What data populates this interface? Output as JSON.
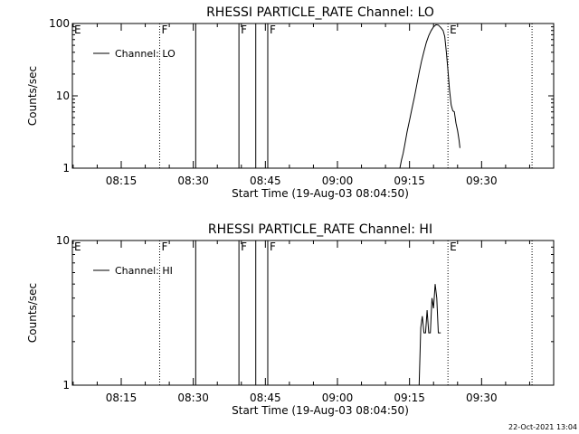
{
  "footer_timestamp": "22-Oct-2021 13:04",
  "chart_data": [
    {
      "type": "line",
      "title": "RHESSI PARTICLE_RATE Channel: LO",
      "xlabel": "Start Time (19-Aug-03 08:04:50)",
      "ylabel": "Counts/sec",
      "y_scale": "log",
      "ylim": [
        1,
        100
      ],
      "y_ticks": [
        {
          "v": 1,
          "label": "1"
        },
        {
          "v": 10,
          "label": "10"
        },
        {
          "v": 100,
          "label": "100"
        }
      ],
      "xlim": [
        "08:04:50",
        "09:45:00"
      ],
      "x_ticks": [
        "08:15",
        "08:30",
        "08:45",
        "09:00",
        "09:15",
        "09:30"
      ],
      "legend": {
        "position": "top-left",
        "entries": [
          "Channel: LO"
        ]
      },
      "markers": [
        {
          "label": "E",
          "t": "08:04:50",
          "style": "none"
        },
        {
          "label": "F",
          "t": "08:23:00",
          "style": "dotted"
        },
        {
          "label": "",
          "t": "08:30:30",
          "style": "solid"
        },
        {
          "label": "F",
          "t": "08:39:30",
          "style": "solid"
        },
        {
          "label": "",
          "t": "08:43:00",
          "style": "solid"
        },
        {
          "label": "F",
          "t": "08:45:30",
          "style": "solid"
        },
        {
          "label": "E",
          "t": "09:23:00",
          "style": "dotted"
        },
        {
          "label": "",
          "t": "09:40:30",
          "style": "dotted"
        }
      ],
      "series": [
        {
          "name": "Channel: LO",
          "points": [
            [
              "09:13:00",
              1.0
            ],
            [
              "09:13:20",
              1.3
            ],
            [
              "09:13:40",
              1.6
            ],
            [
              "09:14:00",
              2.1
            ],
            [
              "09:14:30",
              3.2
            ],
            [
              "09:15:00",
              4.6
            ],
            [
              "09:15:30",
              6.6
            ],
            [
              "09:16:00",
              9.5
            ],
            [
              "09:16:30",
              14
            ],
            [
              "09:17:00",
              21
            ],
            [
              "09:17:30",
              30
            ],
            [
              "09:18:00",
              41
            ],
            [
              "09:18:30",
              55
            ],
            [
              "09:19:00",
              68
            ],
            [
              "09:19:30",
              80
            ],
            [
              "09:20:00",
              90
            ],
            [
              "09:20:30",
              96
            ],
            [
              "09:21:00",
              95
            ],
            [
              "09:21:30",
              88
            ],
            [
              "09:22:00",
              80
            ],
            [
              "09:22:20",
              66
            ],
            [
              "09:22:40",
              40
            ],
            [
              "09:23:00",
              22
            ],
            [
              "09:23:20",
              12
            ],
            [
              "09:23:40",
              7.5
            ],
            [
              "09:24:00",
              6.2
            ],
            [
              "09:24:20",
              6.0
            ],
            [
              "09:24:40",
              4.2
            ],
            [
              "09:25:00",
              3.3
            ],
            [
              "09:25:20",
              2.4
            ],
            [
              "09:25:30",
              1.9
            ]
          ]
        }
      ]
    },
    {
      "type": "line",
      "title": "RHESSI PARTICLE_RATE Channel: HI",
      "xlabel": "Start Time (19-Aug-03 08:04:50)",
      "ylabel": "Counts/sec",
      "y_scale": "log",
      "ylim": [
        1,
        10
      ],
      "y_ticks": [
        {
          "v": 1,
          "label": "1"
        },
        {
          "v": 10,
          "label": "10"
        }
      ],
      "xlim": [
        "08:04:50",
        "09:45:00"
      ],
      "x_ticks": [
        "08:15",
        "08:30",
        "08:45",
        "09:00",
        "09:15",
        "09:30"
      ],
      "legend": {
        "position": "top-left",
        "entries": [
          "Channel: HI"
        ]
      },
      "markers": [
        {
          "label": "E",
          "t": "08:04:50",
          "style": "none"
        },
        {
          "label": "F",
          "t": "08:23:00",
          "style": "dotted"
        },
        {
          "label": "",
          "t": "08:30:30",
          "style": "solid"
        },
        {
          "label": "F",
          "t": "08:39:30",
          "style": "solid"
        },
        {
          "label": "",
          "t": "08:43:00",
          "style": "solid"
        },
        {
          "label": "F",
          "t": "08:45:30",
          "style": "solid"
        },
        {
          "label": "E",
          "t": "09:23:00",
          "style": "dotted"
        },
        {
          "label": "",
          "t": "09:40:30",
          "style": "dotted"
        }
      ],
      "series": [
        {
          "name": "Channel: HI",
          "points": [
            [
              "09:17:00",
              1.0
            ],
            [
              "09:17:20",
              2.5
            ],
            [
              "09:17:40",
              3.0
            ],
            [
              "09:18:00",
              2.3
            ],
            [
              "09:18:20",
              2.3
            ],
            [
              "09:18:40",
              3.3
            ],
            [
              "09:19:00",
              2.3
            ],
            [
              "09:19:20",
              2.3
            ],
            [
              "09:19:40",
              4.0
            ],
            [
              "09:20:00",
              3.4
            ],
            [
              "09:20:20",
              5.0
            ],
            [
              "09:20:40",
              4.0
            ],
            [
              "09:21:00",
              2.3
            ],
            [
              "09:21:30",
              2.3
            ]
          ]
        }
      ]
    }
  ]
}
